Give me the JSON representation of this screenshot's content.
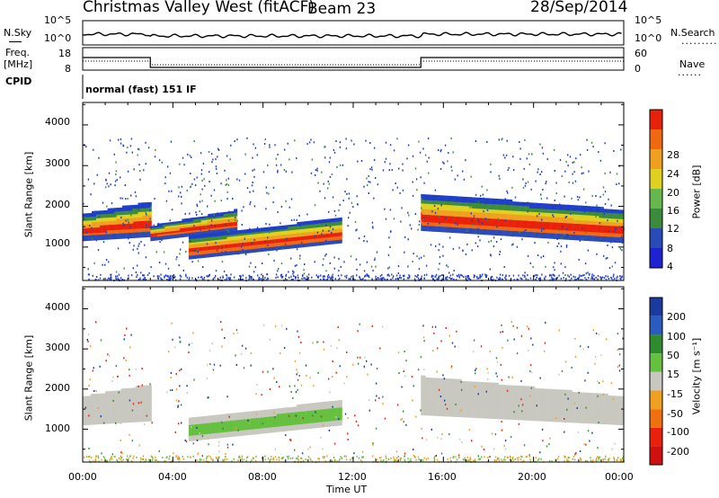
{
  "header": {
    "radar": "Christmas Valley West (fitACF)",
    "beam": "Beam 23",
    "date": "28/Sep/2014"
  },
  "top_panels": {
    "nsky_label": "N.Sky",
    "nsky_tick_top": "10^5",
    "nsky_tick_bottom": "10^0",
    "nsearch_label": "N.Search",
    "nsearch_tick_top": "10^5",
    "nsearch_tick_bottom": "10^0",
    "freq_label": "Freq.",
    "freq_unit": "[MHz]",
    "freq_ticks": [
      "18",
      "8"
    ],
    "nave_label": "Nave",
    "nave_ticks": [
      "60",
      "0"
    ],
    "cpid_label": "CPID",
    "cpid_value": "normal (fast) 151 IF"
  },
  "colors": {
    "ionospheric_power_high": "#e8200c",
    "ionospheric_power_mid": "#f0a020",
    "ionospheric_power_low": "#1e3ec8",
    "ground_scatter": "#c8c8c0",
    "velocity_positive": "#2e8c2e",
    "velocity_negative": "#f07010"
  },
  "chart_data": [
    {
      "type": "heatmap",
      "title": "Power",
      "xlabel": "Time UT",
      "ylabel": "Slant Range [km]",
      "x_ticks": [
        "00:00",
        "04:00",
        "08:00",
        "12:00",
        "16:00",
        "20:00",
        "00:00"
      ],
      "y_ticks": [
        "1000",
        "2000",
        "3000",
        "4000"
      ],
      "ylim": [
        180,
        4550
      ],
      "x_hours": [
        0,
        24
      ],
      "colorbar_label": "Power [dB]",
      "colorbar_ticks": [
        "4",
        "8",
        "12",
        "16",
        "20",
        "24",
        "28"
      ],
      "colorbar_range": [
        0,
        30
      ],
      "bands": [
        {
          "t": [
            0.0,
            3.0
          ],
          "r_lo": [
            1150,
            1250
          ],
          "r_hi": [
            1800,
            2100
          ],
          "peak_db": 26
        },
        {
          "t": [
            3.0,
            6.8
          ],
          "r_lo": [
            1150,
            1400
          ],
          "r_hi": [
            1500,
            1900
          ],
          "peak_db": 22
        },
        {
          "t": [
            4.7,
            11.5
          ],
          "r_lo": [
            700,
            1100
          ],
          "r_hi": [
            1250,
            1700
          ],
          "peak_db": 24
        },
        {
          "t": [
            15.0,
            24.0
          ],
          "r_lo": [
            1400,
            1100
          ],
          "r_hi": [
            2300,
            1900
          ],
          "peak_db": 26
        }
      ]
    },
    {
      "type": "heatmap",
      "title": "Velocity",
      "xlabel": "Time UT",
      "ylabel": "Slant Range [km]",
      "x_ticks": [
        "00:00",
        "04:00",
        "08:00",
        "12:00",
        "16:00",
        "20:00",
        "00:00"
      ],
      "y_ticks": [
        "1000",
        "2000",
        "3000",
        "4000"
      ],
      "ylim": [
        180,
        4550
      ],
      "x_hours": [
        0,
        24
      ],
      "colorbar_label": "Velocity [m s⁻¹]",
      "colorbar_ticks": [
        "200",
        "100",
        "50",
        "15",
        "-15",
        "-50",
        "-100",
        "-200"
      ],
      "colorbar_range": [
        -250,
        250
      ],
      "ground_scatter_bands": [
        {
          "t": [
            0.0,
            3.0
          ],
          "r_lo": [
            1100,
            1200
          ],
          "r_hi": [
            1800,
            2100
          ]
        },
        {
          "t": [
            15.0,
            24.0
          ],
          "r_lo": [
            1350,
            1100
          ],
          "r_hi": [
            2300,
            1800
          ]
        }
      ],
      "positive_velocity_region": {
        "t": [
          4.7,
          11.5
        ],
        "r_lo": [
          700,
          1100
        ],
        "r_hi": [
          1250,
          1700
        ],
        "velocity": 40
      }
    }
  ]
}
